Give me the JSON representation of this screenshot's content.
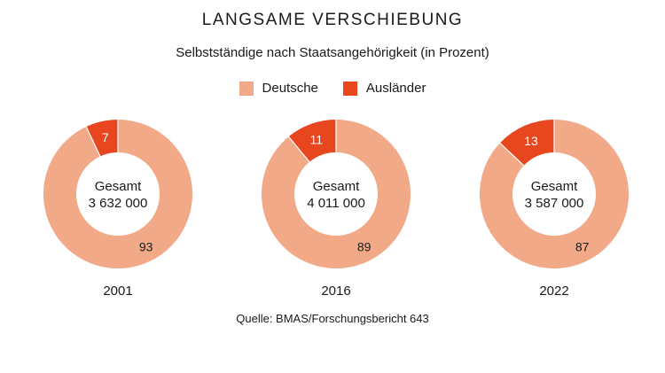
{
  "title": "LANGSAME VERSCHIEBUNG",
  "subtitle": "Selbstständige nach Staatsangehörigkeit (in Prozent)",
  "legend": [
    {
      "label": "Deutsche",
      "color": "#F2A988"
    },
    {
      "label": "Ausländer",
      "color": "#E8461E"
    }
  ],
  "source": "Quelle: BMAS/Forschungsbericht 643",
  "chart_data": [
    {
      "type": "pie",
      "year": "2001",
      "center_label": "Gesamt",
      "center_value": "3 632 000",
      "categories": [
        "Deutsche",
        "Ausländer"
      ],
      "values": [
        93,
        7
      ]
    },
    {
      "type": "pie",
      "year": "2016",
      "center_label": "Gesamt",
      "center_value": "4 011 000",
      "categories": [
        "Deutsche",
        "Ausländer"
      ],
      "values": [
        89,
        11
      ]
    },
    {
      "type": "pie",
      "year": "2022",
      "center_label": "Gesamt",
      "center_value": "3 587 000",
      "categories": [
        "Deutsche",
        "Ausländer"
      ],
      "values": [
        87,
        13
      ]
    }
  ]
}
